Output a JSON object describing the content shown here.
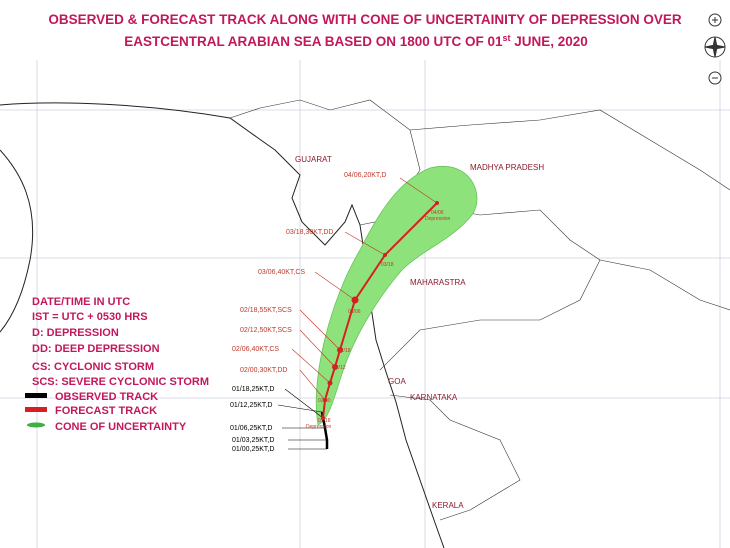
{
  "title": {
    "line1": "OBSERVED & FORECAST TRACK ALONG WITH CONE OF UNCERTAINITY OF DEPRESSION OVER",
    "line2_before": "EASTCENTRAL ARABIAN SEA BASED ON 1800 UTC OF 01",
    "line2_sup": "st",
    "line2_after": " JUNE, 2020"
  },
  "regions": [
    "GUJARAT",
    "MADHYA PRADESH",
    "MAHARASTRA",
    "GOA",
    "KARNATAKA",
    "KERALA"
  ],
  "track_labels": [
    "04/06,20KT,D",
    "03/18,30KT,DD",
    "03/06,40KT,CS",
    "02/18,55KT,SCS",
    "02/12,50KT,SCS",
    "02/06,40KT,CS",
    "02/00,30KT,DD",
    "01/18,25KT,D",
    "01/12,25KT,D",
    "01/06,25KT,D",
    "01/03,25KT,D",
    "01/00,25KT,D"
  ],
  "point_labels": [
    "04/06",
    "Depression",
    "03/18",
    "03/06",
    "02/18",
    "02/12",
    "02/00",
    "01/18",
    "Depression"
  ],
  "legend": {
    "notes": [
      "DATE/TIME IN UTC",
      "IST = UTC + 0530 HRS",
      "D: DEPRESSION",
      "DD: DEEP DEPRESSION",
      "CS: CYCLONIC STORM",
      "SCS: SEVERE CYCLONIC STORM"
    ],
    "items": [
      "OBSERVED TRACK",
      "FORECAST TRACK",
      "CONE OF UNCERTAINTY"
    ]
  }
}
